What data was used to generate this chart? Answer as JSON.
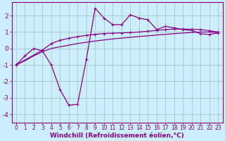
{
  "bg_color": "#cceeff",
  "grid_color": "#aacccc",
  "line_color": "#880088",
  "xlabel": "Windchill (Refroidissement éolien,°C)",
  "xlabel_fontsize": 6.5,
  "xtick_fontsize": 5.5,
  "ytick_fontsize": 6.5,
  "xlim": [
    -0.5,
    23.5
  ],
  "ylim": [
    -4.5,
    2.8
  ],
  "yticks": [
    -4,
    -3,
    -2,
    -1,
    0,
    1,
    2
  ],
  "xticks": [
    0,
    1,
    2,
    3,
    4,
    5,
    6,
    7,
    8,
    9,
    10,
    11,
    12,
    13,
    14,
    15,
    16,
    17,
    18,
    19,
    20,
    21,
    22,
    23
  ],
  "line1_x": [
    0,
    1,
    2,
    3,
    4,
    5,
    6,
    7,
    8,
    9,
    10,
    11,
    12,
    13,
    14,
    15,
    16,
    17,
    18,
    19,
    20,
    21,
    22,
    23
  ],
  "line1_y": [
    -1.0,
    -0.75,
    -0.45,
    -0.2,
    -0.0,
    0.1,
    0.2,
    0.3,
    0.38,
    0.45,
    0.52,
    0.58,
    0.63,
    0.68,
    0.73,
    0.77,
    0.82,
    0.86,
    0.9,
    0.94,
    0.97,
    1.0,
    1.0,
    0.97
  ],
  "line2_x": [
    0,
    3,
    4,
    5,
    6,
    7,
    8,
    9,
    10,
    11,
    12,
    13,
    14,
    15,
    16,
    17,
    18,
    19,
    20,
    21,
    22,
    23
  ],
  "line2_y": [
    -1.0,
    -0.1,
    0.3,
    0.5,
    0.62,
    0.72,
    0.8,
    0.86,
    0.91,
    0.93,
    0.95,
    0.97,
    1.0,
    1.05,
    1.1,
    1.15,
    1.18,
    1.18,
    1.17,
    1.15,
    1.08,
    1.0
  ],
  "line3_x": [
    0,
    1,
    2,
    3,
    4,
    5,
    6,
    7,
    8,
    9,
    10,
    11,
    12,
    13,
    14,
    15,
    16,
    17,
    18,
    19,
    20,
    21,
    22,
    23
  ],
  "line3_y": [
    -1.0,
    -0.45,
    0.0,
    -0.15,
    -1.0,
    -2.5,
    -3.45,
    -3.4,
    -0.65,
    2.45,
    1.85,
    1.45,
    1.45,
    2.05,
    1.85,
    1.75,
    1.15,
    1.35,
    1.25,
    1.15,
    1.1,
    0.9,
    0.85,
    0.95
  ]
}
